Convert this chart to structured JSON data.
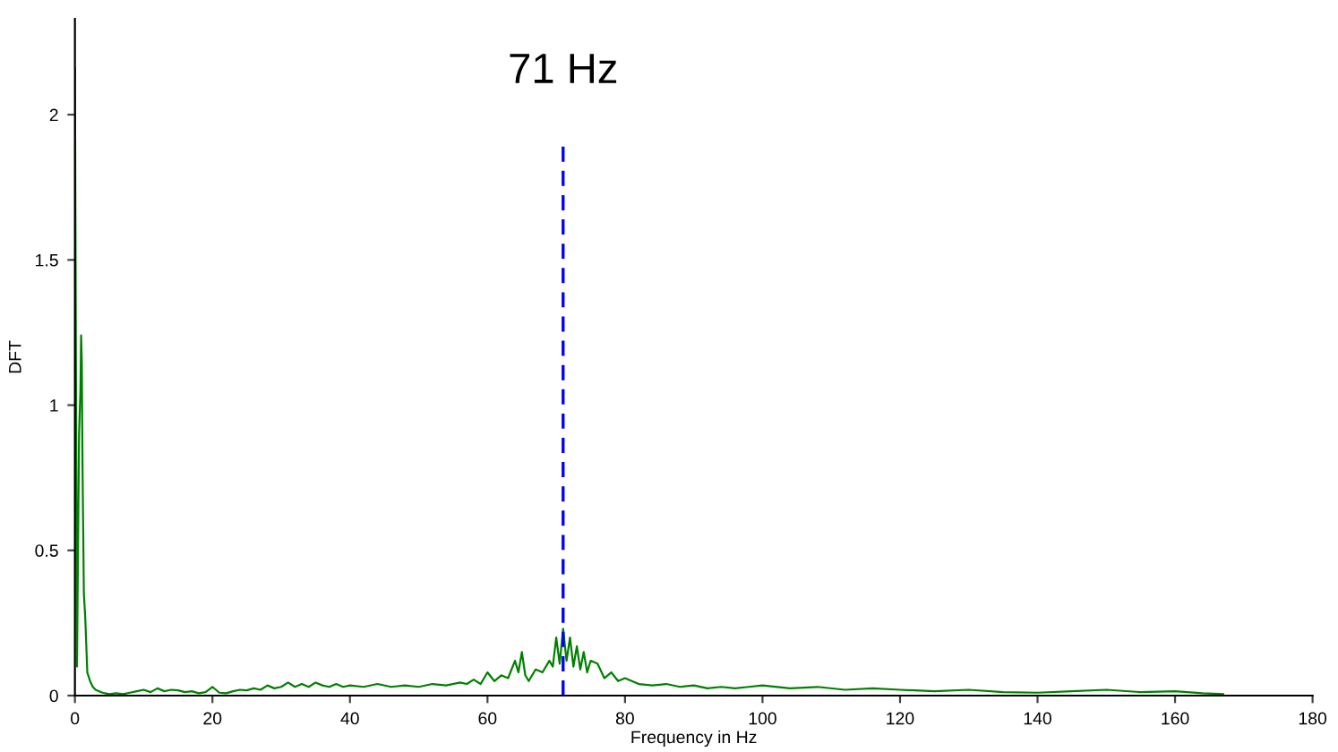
{
  "chart_data": {
    "type": "line",
    "xlabel": "Frequency in Hz",
    "ylabel": "DFT",
    "xlim": [
      0,
      180
    ],
    "xticks": [
      0,
      20,
      40,
      60,
      80,
      100,
      120,
      140,
      160,
      180
    ],
    "ylim": [
      0,
      2.33
    ],
    "yticks": [
      0,
      0.5,
      1,
      1.5,
      2
    ],
    "grid": false,
    "legend": false,
    "marker": "none",
    "annotations": [
      {
        "text": "71 Hz",
        "x": 71,
        "y": 1.89
      }
    ],
    "series": [
      {
        "color": "#008000",
        "line_style": "solid",
        "x": [
          0,
          0.3,
          0.6,
          0.8,
          0.9,
          1.0,
          1.1,
          1.3,
          1.5,
          1.8,
          2.2,
          2.6,
          3,
          4,
          5,
          6,
          7,
          8,
          9,
          10,
          11,
          12,
          13,
          14,
          15,
          16,
          17,
          18,
          19,
          20,
          21,
          22,
          23,
          24,
          25,
          26,
          27,
          28,
          29,
          30,
          31,
          32,
          33,
          34,
          35,
          36,
          37,
          38,
          39,
          40,
          42,
          44,
          46,
          48,
          50,
          52,
          54,
          56,
          57,
          58,
          59,
          60,
          61,
          62,
          63,
          64,
          64.5,
          65,
          65.5,
          66,
          67,
          68,
          69,
          69.5,
          70,
          70.5,
          71,
          71.5,
          72,
          72.5,
          73,
          73.5,
          74,
          74.5,
          75,
          76,
          77,
          78,
          79,
          80,
          82,
          84,
          86,
          88,
          90,
          92,
          94,
          96,
          98,
          100,
          104,
          108,
          112,
          116,
          120,
          125,
          130,
          135,
          140,
          145,
          150,
          155,
          160,
          164,
          167
        ],
        "values": [
          2.16,
          0.1,
          0.9,
          1.05,
          1.24,
          1.15,
          0.8,
          0.35,
          0.27,
          0.08,
          0.05,
          0.03,
          0.02,
          0.01,
          0.005,
          0.008,
          0.005,
          0.01,
          0.015,
          0.02,
          0.012,
          0.025,
          0.015,
          0.02,
          0.018,
          0.012,
          0.015,
          0.008,
          0.012,
          0.03,
          0.01,
          0.008,
          0.015,
          0.02,
          0.018,
          0.025,
          0.02,
          0.035,
          0.025,
          0.03,
          0.045,
          0.03,
          0.04,
          0.03,
          0.045,
          0.035,
          0.03,
          0.04,
          0.03,
          0.035,
          0.03,
          0.04,
          0.03,
          0.035,
          0.03,
          0.04,
          0.035,
          0.045,
          0.04,
          0.055,
          0.04,
          0.08,
          0.05,
          0.07,
          0.06,
          0.12,
          0.08,
          0.15,
          0.07,
          0.05,
          0.09,
          0.08,
          0.12,
          0.1,
          0.2,
          0.11,
          0.23,
          0.12,
          0.2,
          0.1,
          0.17,
          0.09,
          0.15,
          0.08,
          0.12,
          0.11,
          0.06,
          0.08,
          0.05,
          0.06,
          0.04,
          0.035,
          0.04,
          0.03,
          0.035,
          0.025,
          0.03,
          0.025,
          0.03,
          0.035,
          0.025,
          0.03,
          0.02,
          0.025,
          0.02,
          0.015,
          0.02,
          0.012,
          0.01,
          0.015,
          0.02,
          0.012,
          0.015,
          0.008,
          0.005
        ]
      },
      {
        "color": "#0000ff",
        "line_style": "dashed",
        "x": [
          71,
          71
        ],
        "values": [
          0,
          1.89
        ]
      }
    ]
  }
}
